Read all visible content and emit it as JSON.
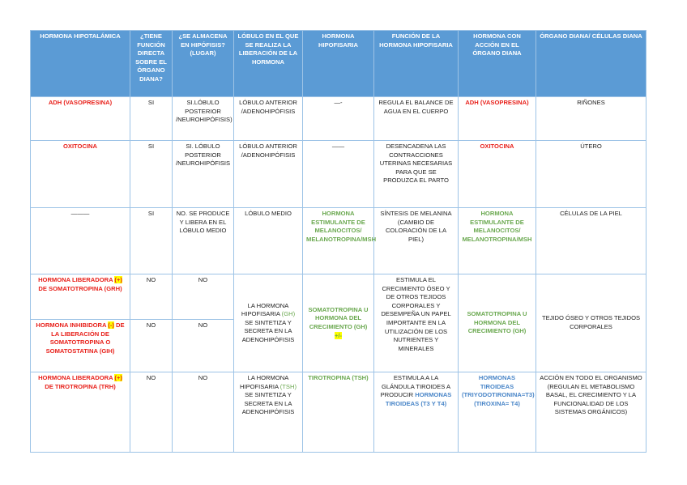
{
  "table": {
    "headers": [
      "HORMONA HIPOTALÁMICA",
      "¿TIENE FUNCIÓN DIRECTA SOBRE EL ÓRGANO DIANA?",
      "¿SE ALMACENA EN HIPÓFISIS? (LUGAR)",
      "LÓBULO EN EL QUE SE REALIZA LA LIBERACIÓN DE LA HORMONA",
      "HORMONA HIPOFISARIA",
      "FUNCIÓN DE LA HORMONA HIPOFISARIA",
      "HORMONA CON ACCIÓN EN EL ÓRGANO DIANA",
      "ÓRGANO DIANA/ CÉLULAS DIANA"
    ],
    "rows": [
      [
        [
          "ADH (VASOPRESINA)"
        ],
        [
          "SI"
        ],
        [
          "SI.LÓBULO POSTERIOR /NEUROHIPÓFISIS)"
        ],
        [
          "LÓBULO ANTERIOR /ADENOHIPÓFISIS"
        ],
        [
          "—-"
        ],
        [
          "REGULA EL BALANCE DE AGUA EN EL CUERPO"
        ],
        [
          "ADH (VASOPRESINA)"
        ],
        [
          "RIÑONES"
        ]
      ],
      [
        [
          "OXITOCINA"
        ],
        [
          "SI"
        ],
        [
          "SI. LÓBULO POSTERIOR /NEUROHIPÓFISIS"
        ],
        [
          "LÓBULO ANTERIOR /ADENOHIPÓFISIS"
        ],
        [
          "——"
        ],
        [
          "DESENCADENA LAS CONTRACCIONES UTERINAS NECESARIAS PARA QUE SE PRODUZCA EL PARTO"
        ],
        [
          "OXITOCINA"
        ],
        [
          "ÚTERO"
        ]
      ],
      [
        [
          "———"
        ],
        [
          "SI"
        ],
        [
          "NO. SE PRODUCE Y LIBERA EN EL LÓBULO MEDIO"
        ],
        [
          "LÓBULO MEDIO"
        ],
        [
          "HORMONA ESTIMULANTE DE MELANOCITOS/ MELANOTROPINA/MSH"
        ],
        [
          "SÍNTESIS DE MELANINA (CAMBIO DE COLORACIÓN DE LA PIEL)"
        ],
        [
          "HORMONA ESTIMULANTE DE MELANOCITOS/ MELANOTROPINA/MSH"
        ],
        [
          "CÉLULAS DE LA PIEL"
        ]
      ],
      [
        [
          "HORMONA LIBERADORA ",
          "(+)",
          " DE SOMATOTROPINA (GRH)"
        ],
        [
          "NO"
        ],
        [
          "NO"
        ],
        [
          "LA HORMONA HIPOFISARIA ",
          "(GH)",
          " SE SINTETIZA Y SECRETA EN LA ADENOHIPÓFISIS"
        ],
        [
          "SOMATOTROPINA U HORMONA DEL CRECIMIENTO (GH)",
          "+/-"
        ],
        [
          "ESTIMULA EL CRECIMIENTO ÓSEO Y DE OTROS TEJIDOS CORPORALES Y DESEMPEÑA UN PAPEL IMPORTANTE EN LA UTILIZACIÓN DE LOS NUTRIENTES Y MINERALES"
        ],
        [
          "SOMATOTROPINA U HORMONA DEL CRECIMIENTO (GH)"
        ],
        [
          "TEJIDO ÓSEO Y OTROS TEJIDOS CORPORALES"
        ]
      ],
      [
        [
          "HORMONA INHIBIDORA ",
          "(-)",
          " DE LA LIBERACIÓN DE SOMATOTROPINA O SOMATOSTATINA (GIH)"
        ],
        [
          "NO"
        ],
        [
          "NO"
        ]
      ],
      [
        [
          "HORMONA LIBERADORA ",
          "(+)",
          " DE TIROTROPINA (TRH)"
        ],
        [
          "NO"
        ],
        [
          "NO"
        ],
        [
          "LA HORMONA HIPOFISARIA ",
          "(TSH)",
          " SE SINTETIZA Y SECRETA EN LA ADENOHIPÓFISIS"
        ],
        [
          "TIROTROPINA (TSH)"
        ],
        [
          "ESTIMULA A LA GLÁNDULA TIROIDES A PRODUCIR ",
          "HORMONAS TIROIDEAS (T3 Y T4)"
        ],
        [
          "HORMONAS TIROIDEAS (TRIYODOTIRONINA=T3) (TIROXINA= T4)"
        ],
        [
          "ACCIÓN EN TODO EL ORGANISMO (REGULAN EL METABOLISMO BASAL, EL CRECIMIENTO Y LA FUNCIONALIDAD DE LOS SISTEMAS ORGÁNICOS)"
        ]
      ]
    ]
  }
}
